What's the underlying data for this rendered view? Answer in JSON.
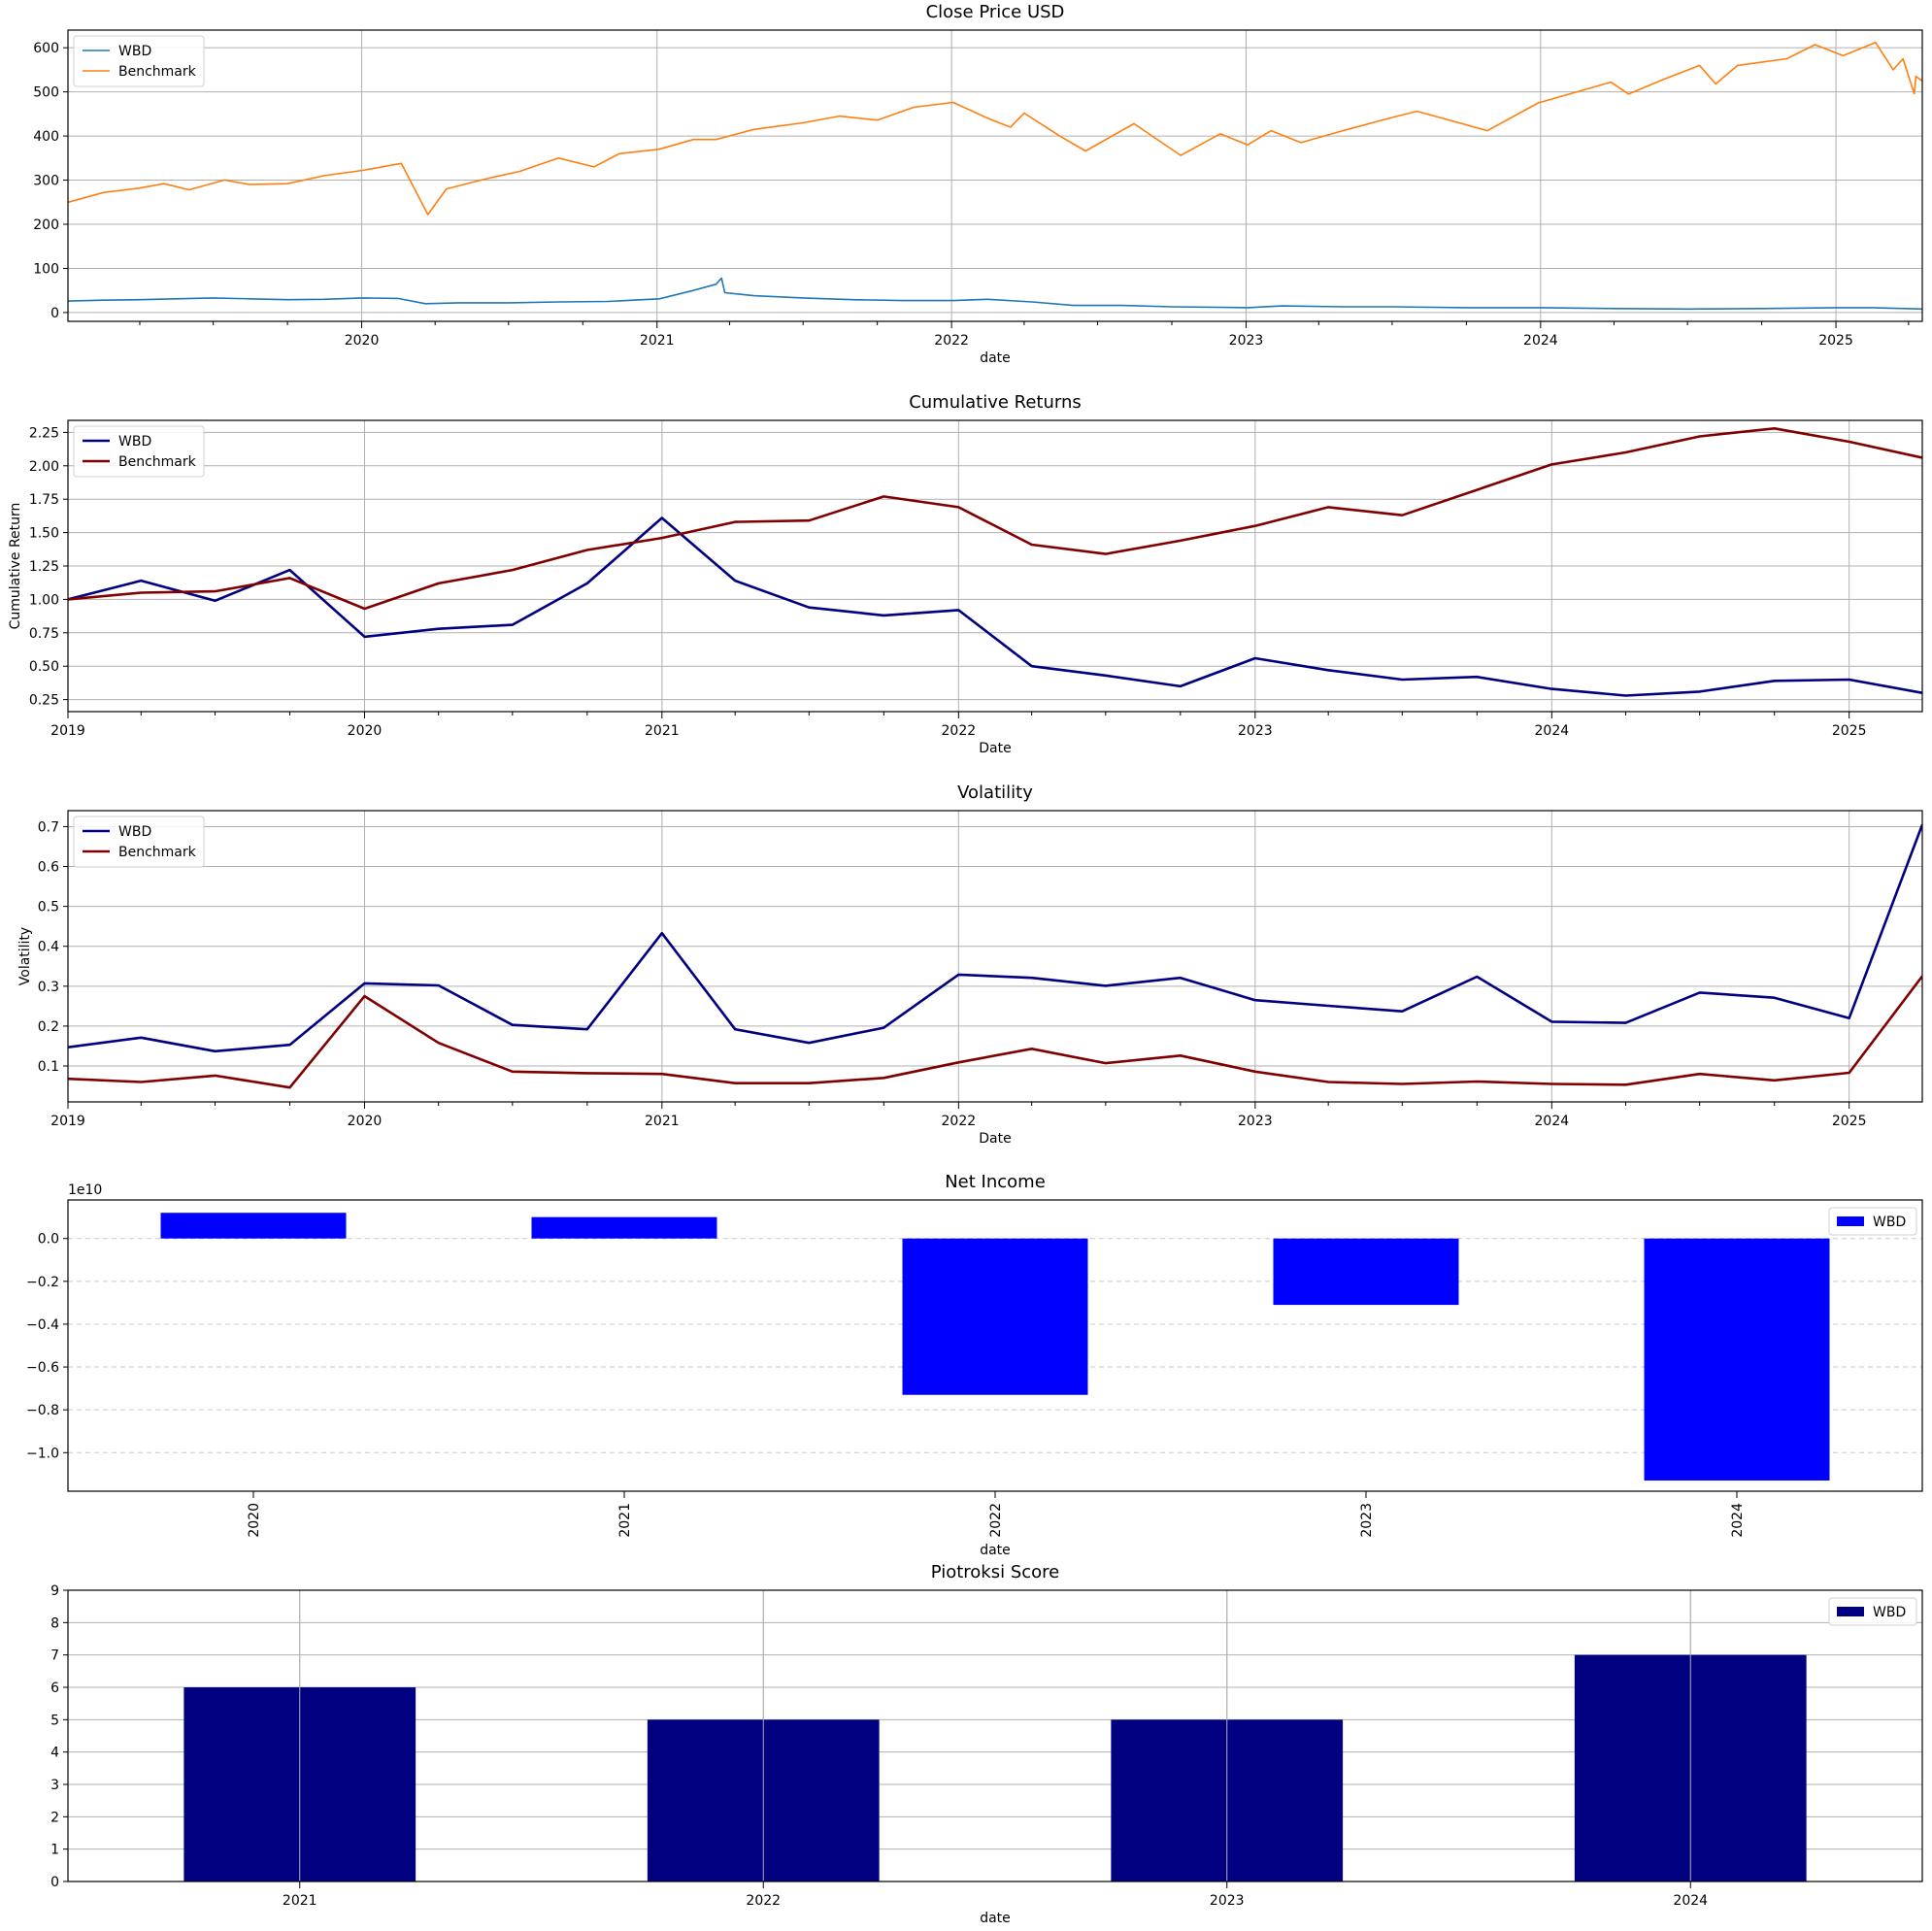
{
  "chart_data": [
    {
      "type": "line",
      "title": "Close Price USD",
      "xlabel": "date",
      "ylabel": "",
      "ylim": [
        -20,
        640
      ],
      "yticks": [
        0,
        100,
        200,
        300,
        400,
        500,
        600
      ],
      "xlim": [
        "2019-01-02",
        "2025-04-18"
      ],
      "xticks": [
        "2020",
        "2021",
        "2022",
        "2023",
        "2024",
        "2025"
      ],
      "grid": true,
      "legend": "top-left",
      "series": [
        {
          "name": "WBD",
          "color": "#1f77b4",
          "points": [
            [
              "2019-01-02",
              26
            ],
            [
              "2019-02-15",
              28
            ],
            [
              "2019-04-01",
              29
            ],
            [
              "2019-05-15",
              31
            ],
            [
              "2019-07-01",
              33
            ],
            [
              "2019-08-15",
              31
            ],
            [
              "2019-10-01",
              29
            ],
            [
              "2019-11-15",
              30
            ],
            [
              "2020-01-02",
              33
            ],
            [
              "2020-02-15",
              32
            ],
            [
              "2020-03-20",
              20
            ],
            [
              "2020-05-01",
              22
            ],
            [
              "2020-07-01",
              22
            ],
            [
              "2020-09-01",
              24
            ],
            [
              "2020-11-01",
              25
            ],
            [
              "2021-01-04",
              31
            ],
            [
              "2021-02-15",
              50
            ],
            [
              "2021-03-15",
              64
            ],
            [
              "2021-03-22",
              78
            ],
            [
              "2021-03-26",
              45
            ],
            [
              "2021-05-01",
              38
            ],
            [
              "2021-07-01",
              33
            ],
            [
              "2021-09-01",
              29
            ],
            [
              "2021-11-01",
              27
            ],
            [
              "2022-01-03",
              27
            ],
            [
              "2022-02-15",
              30
            ],
            [
              "2022-04-11",
              24
            ],
            [
              "2022-06-01",
              16
            ],
            [
              "2022-08-01",
              16
            ],
            [
              "2022-10-01",
              13
            ],
            [
              "2023-01-03",
              11
            ],
            [
              "2023-02-15",
              15
            ],
            [
              "2023-05-01",
              13
            ],
            [
              "2023-07-01",
              13
            ],
            [
              "2023-10-01",
              11
            ],
            [
              "2024-01-02",
              11
            ],
            [
              "2024-04-01",
              9
            ],
            [
              "2024-07-01",
              8
            ],
            [
              "2024-10-01",
              9
            ],
            [
              "2025-01-02",
              11
            ],
            [
              "2025-02-15",
              11
            ],
            [
              "2025-04-18",
              8
            ]
          ]
        },
        {
          "name": "Benchmark",
          "color": "#ff7f0e",
          "points": [
            [
              "2019-01-02",
              250
            ],
            [
              "2019-02-15",
              272
            ],
            [
              "2019-04-01",
              282
            ],
            [
              "2019-05-01",
              292
            ],
            [
              "2019-06-01",
              278
            ],
            [
              "2019-07-15",
              300
            ],
            [
              "2019-08-15",
              290
            ],
            [
              "2019-10-01",
              292
            ],
            [
              "2019-11-15",
              310
            ],
            [
              "2020-01-02",
              322
            ],
            [
              "2020-02-19",
              338
            ],
            [
              "2020-03-23",
              222
            ],
            [
              "2020-04-15",
              280
            ],
            [
              "2020-06-01",
              302
            ],
            [
              "2020-07-15",
              320
            ],
            [
              "2020-09-01",
              350
            ],
            [
              "2020-10-15",
              330
            ],
            [
              "2020-11-15",
              360
            ],
            [
              "2021-01-04",
              370
            ],
            [
              "2021-02-15",
              392
            ],
            [
              "2021-03-15",
              392
            ],
            [
              "2021-05-01",
              415
            ],
            [
              "2021-07-01",
              430
            ],
            [
              "2021-08-15",
              445
            ],
            [
              "2021-10-01",
              436
            ],
            [
              "2021-11-15",
              465
            ],
            [
              "2022-01-03",
              476
            ],
            [
              "2022-02-15",
              440
            ],
            [
              "2022-03-15",
              420
            ],
            [
              "2022-04-01",
              452
            ],
            [
              "2022-05-15",
              400
            ],
            [
              "2022-06-16",
              366
            ],
            [
              "2022-08-15",
              428
            ],
            [
              "2022-10-12",
              356
            ],
            [
              "2022-11-30",
              405
            ],
            [
              "2023-01-03",
              380
            ],
            [
              "2023-02-01",
              412
            ],
            [
              "2023-03-10",
              385
            ],
            [
              "2023-05-01",
              412
            ],
            [
              "2023-07-01",
              442
            ],
            [
              "2023-08-01",
              456
            ],
            [
              "2023-10-27",
              412
            ],
            [
              "2023-12-29",
              475
            ],
            [
              "2024-02-15",
              500
            ],
            [
              "2024-03-28",
              522
            ],
            [
              "2024-04-19",
              495
            ],
            [
              "2024-06-01",
              528
            ],
            [
              "2024-07-16",
              560
            ],
            [
              "2024-08-05",
              518
            ],
            [
              "2024-09-01",
              560
            ],
            [
              "2024-11-01",
              575
            ],
            [
              "2024-12-06",
              607
            ],
            [
              "2025-01-10",
              582
            ],
            [
              "2025-02-19",
              612
            ],
            [
              "2025-03-13",
              550
            ],
            [
              "2025-03-25",
              575
            ],
            [
              "2025-04-08",
              496
            ],
            [
              "2025-04-10",
              535
            ],
            [
              "2025-04-18",
              525
            ]
          ]
        }
      ]
    },
    {
      "type": "line",
      "title": "Cumulative Returns",
      "xlabel": "Date",
      "ylabel": "Cumulative Return",
      "ylim": [
        0.16,
        2.34
      ],
      "yticks": [
        "0.25",
        "0.50",
        "0.75",
        "1.00",
        "1.25",
        "1.50",
        "1.75",
        "2.00",
        "2.25"
      ],
      "xlim": [
        "2019-01-01",
        "2025-04-01"
      ],
      "xticks": [
        "2019",
        "2020",
        "2021",
        "2022",
        "2023",
        "2024",
        "2025"
      ],
      "grid": true,
      "legend": "top-left",
      "x": [
        "2019-01-01",
        "2019-04-01",
        "2019-07-01",
        "2019-10-01",
        "2020-01-01",
        "2020-04-01",
        "2020-07-01",
        "2020-10-01",
        "2021-01-01",
        "2021-04-01",
        "2021-07-01",
        "2021-10-01",
        "2022-01-01",
        "2022-04-01",
        "2022-07-01",
        "2022-10-01",
        "2023-01-01",
        "2023-04-01",
        "2023-07-01",
        "2023-10-01",
        "2024-01-01",
        "2024-04-01",
        "2024-07-01",
        "2024-10-01",
        "2025-01-01",
        "2025-04-01"
      ],
      "series": [
        {
          "name": "WBD",
          "color": "#000080",
          "values": [
            1.0,
            1.14,
            0.99,
            1.22,
            0.72,
            0.78,
            0.81,
            1.12,
            1.61,
            1.14,
            0.94,
            0.88,
            0.92,
            0.5,
            0.43,
            0.35,
            0.56,
            0.47,
            0.4,
            0.42,
            0.33,
            0.28,
            0.31,
            0.39,
            0.4,
            0.3
          ]
        },
        {
          "name": "Benchmark",
          "color": "#800000",
          "values": [
            1.0,
            1.05,
            1.06,
            1.16,
            0.93,
            1.12,
            1.22,
            1.37,
            1.46,
            1.58,
            1.59,
            1.77,
            1.69,
            1.41,
            1.34,
            1.44,
            1.55,
            1.69,
            1.63,
            1.82,
            2.01,
            2.1,
            2.22,
            2.28,
            2.18,
            2.06
          ]
        }
      ]
    },
    {
      "type": "line",
      "title": "Volatility",
      "xlabel": "Date",
      "ylabel": "Volatility",
      "ylim": [
        0.01,
        0.74
      ],
      "yticks": [
        "0.1",
        "0.2",
        "0.3",
        "0.4",
        "0.5",
        "0.6",
        "0.7"
      ],
      "xlim": [
        "2019-01-01",
        "2025-04-01"
      ],
      "xticks": [
        "2019",
        "2020",
        "2021",
        "2022",
        "2023",
        "2024",
        "2025"
      ],
      "grid": true,
      "legend": "top-left",
      "x": [
        "2019-01-01",
        "2019-04-01",
        "2019-07-01",
        "2019-10-01",
        "2020-01-01",
        "2020-04-01",
        "2020-07-01",
        "2020-10-01",
        "2021-01-01",
        "2021-04-01",
        "2021-07-01",
        "2021-10-01",
        "2022-01-01",
        "2022-04-01",
        "2022-07-01",
        "2022-10-01",
        "2023-01-01",
        "2023-04-01",
        "2023-07-01",
        "2023-10-01",
        "2024-01-01",
        "2024-04-01",
        "2024-07-01",
        "2024-10-01",
        "2025-01-01",
        "2025-04-01"
      ],
      "series": [
        {
          "name": "WBD",
          "color": "#000080",
          "values": [
            0.147,
            0.171,
            0.137,
            0.153,
            0.307,
            0.302,
            0.203,
            0.192,
            0.433,
            0.192,
            0.158,
            0.196,
            0.329,
            0.321,
            0.301,
            0.321,
            0.265,
            0.251,
            0.237,
            0.324,
            0.211,
            0.208,
            0.284,
            0.271,
            0.22,
            0.705
          ]
        },
        {
          "name": "Benchmark",
          "color": "#800000",
          "values": [
            0.068,
            0.06,
            0.076,
            0.046,
            0.275,
            0.158,
            0.086,
            0.082,
            0.08,
            0.057,
            0.057,
            0.07,
            0.109,
            0.143,
            0.107,
            0.126,
            0.086,
            0.06,
            0.055,
            0.061,
            0.055,
            0.053,
            0.08,
            0.064,
            0.083,
            0.325
          ]
        }
      ]
    },
    {
      "type": "bar",
      "title": "Net Income",
      "xlabel": "date",
      "ylabel": "",
      "offset_label": "1e10",
      "ylim": [
        -1.18,
        0.18
      ],
      "yticks": [
        "0.0",
        "−0.2",
        "−0.4",
        "−0.6",
        "−0.8",
        "−1.0"
      ],
      "categories": [
        "2020",
        "2021",
        "2022",
        "2023",
        "2024"
      ],
      "legend": "top-right",
      "grid": "y-dashed",
      "series": [
        {
          "name": "WBD",
          "color": "#0000ff",
          "values": [
            0.12,
            0.1,
            -0.73,
            -0.31,
            -1.13
          ]
        }
      ]
    },
    {
      "type": "bar",
      "title": "Piotroksi Score",
      "xlabel": "date",
      "ylabel": "",
      "ylim": [
        0,
        9
      ],
      "yticks": [
        "0",
        "1",
        "2",
        "3",
        "4",
        "5",
        "6",
        "7",
        "8",
        "9"
      ],
      "categories": [
        "2021",
        "2022",
        "2023",
        "2024"
      ],
      "legend": "top-right",
      "grid": true,
      "series": [
        {
          "name": "WBD",
          "color": "#000080",
          "values": [
            6,
            5,
            5,
            7
          ]
        }
      ]
    }
  ]
}
